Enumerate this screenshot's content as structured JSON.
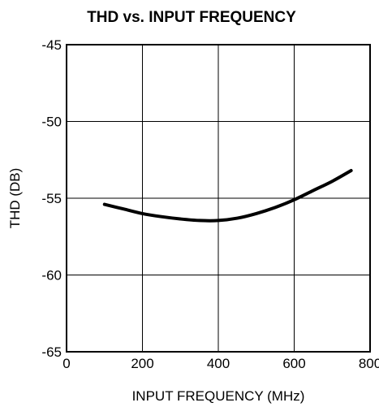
{
  "chart_data": {
    "type": "line",
    "title": "THD vs. INPUT FREQUENCY",
    "xlabel": "INPUT FREQUENCY (MHz)",
    "ylabel": "THD (DB)",
    "xlim": [
      0,
      800
    ],
    "ylim": [
      -65,
      -45
    ],
    "x_ticks": [
      "0",
      "200",
      "400",
      "600",
      "800"
    ],
    "y_ticks": [
      "-45",
      "-50",
      "-55",
      "-60",
      "-65"
    ],
    "grid": true,
    "series": [
      {
        "x": [
          100,
          150,
          200,
          250,
          300,
          350,
          400,
          450,
          500,
          550,
          600,
          650,
          700,
          750
        ],
        "y": [
          -55.4,
          -55.7,
          -56.0,
          -56.2,
          -56.35,
          -56.45,
          -56.45,
          -56.3,
          -56.0,
          -55.6,
          -55.1,
          -54.5,
          -53.9,
          -53.2
        ],
        "color": "#000000"
      }
    ]
  }
}
